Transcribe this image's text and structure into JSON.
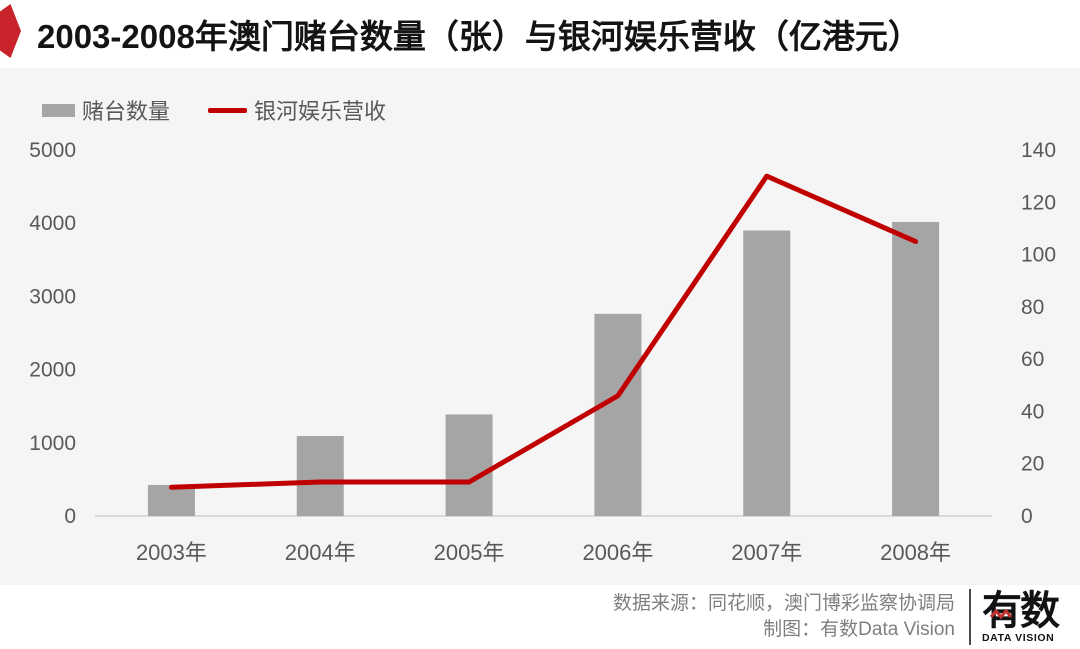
{
  "title": "2003-2008年澳门赌台数量（张）与银河娱乐营收（亿港元）",
  "legend": [
    {
      "label": "赌台数量",
      "type": "bar",
      "color": "#a5a5a5"
    },
    {
      "label": "银河娱乐营收",
      "type": "line",
      "color": "#c00000"
    }
  ],
  "chart_data": {
    "type": "bar",
    "subtype": "bar-and-line-dual-axis",
    "title": "2003-2008年澳门赌台数量（张）与银河娱乐营收（亿港元）",
    "categories": [
      "2003年",
      "2004年",
      "2005年",
      "2006年",
      "2007年",
      "2008年"
    ],
    "series": [
      {
        "name": "赌台数量",
        "type": "bar",
        "axis": "left",
        "unit": "张",
        "color": "#a5a5a5",
        "values": [
          424,
          1092,
          1388,
          2762,
          3900,
          4017
        ]
      },
      {
        "name": "银河娱乐营收",
        "type": "line",
        "axis": "right",
        "unit": "亿港元",
        "color": "#c00000",
        "values": [
          11,
          13,
          13,
          46,
          130,
          105
        ]
      }
    ],
    "left_axis": {
      "min": 0,
      "max": 5000,
      "step": 1000,
      "ticks": [
        0,
        1000,
        2000,
        3000,
        4000,
        5000
      ]
    },
    "right_axis": {
      "min": 0,
      "max": 140,
      "step": 20,
      "ticks": [
        0,
        20,
        40,
        60,
        80,
        100,
        120,
        140
      ]
    },
    "grid": false,
    "legend_position": "top-left"
  },
  "footer": {
    "source_line": "数据来源：同花顺，澳门博彩监察协调局",
    "credit_line": "制图：有数Data Vision",
    "logo": {
      "cn": "有数",
      "en": "DATA VISION"
    }
  },
  "icons": {
    "title_badge": "red-hexagon-ribbon",
    "logo_zigzag": "red-zigzag-wave"
  },
  "colors": {
    "accent_red": "#c00000",
    "badge_red": "#c9242b",
    "bar_gray": "#a5a5a5",
    "panel_bg": "#f5f5f5",
    "axis_text": "#595959",
    "axis_line": "#d9d9d9",
    "footer_text": "#7f7f7f",
    "logo_black": "#121212"
  }
}
